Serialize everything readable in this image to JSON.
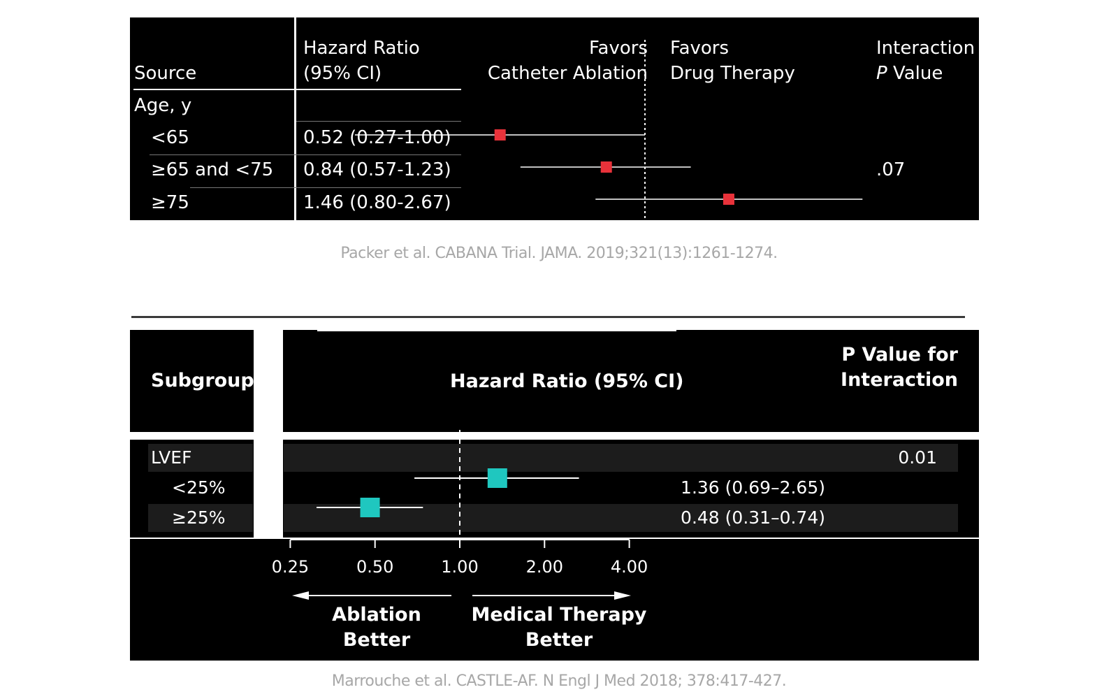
{
  "top_table": {
    "headers": {
      "source": "Source",
      "hr_line1": "Hazard Ratio",
      "hr_line2": "(95% CI)",
      "favors_left_1": "Favors",
      "favors_left_2": "Catheter Ablation",
      "favors_right_1": "Favors",
      "favors_right_2": "Drug Therapy",
      "pvalue_1": "Interaction",
      "pvalue_2_italic": "P",
      "pvalue_2_rest": " Value"
    },
    "group_label": "Age, y",
    "rows": [
      {
        "label": "<65",
        "hr_text": "0.52 (0.27-1.00)"
      },
      {
        "label": "≥65 and <75",
        "hr_text": "0.84 (0.57-1.23)"
      },
      {
        "label": "≥75",
        "hr_text": "1.46 (0.80-2.67)"
      }
    ],
    "p_value": ".07",
    "marker_color": "#e8323a"
  },
  "top_caption": "Packer et al. CABANA Trial. JAMA. 2019;321(13):1261-1274.",
  "bottom_table": {
    "headers": {
      "subgroup": "Subgroup",
      "hr": "Hazard Ratio (95% CI)",
      "pvalue_1": "P Value for",
      "pvalue_2": "Interaction"
    },
    "group_label": "LVEF",
    "p_value": "0.01",
    "rows": [
      {
        "label": "<25%",
        "hr_text": "1.36 (0.69–2.65)"
      },
      {
        "label": "≥25%",
        "hr_text": "0.48 (0.31–0.74)"
      }
    ],
    "axis_ticks": [
      "0.25",
      "0.50",
      "1.00",
      "2.00",
      "4.00"
    ],
    "left_arrow_1": "Ablation",
    "left_arrow_2": "Better",
    "right_arrow_1": "Medical Therapy",
    "right_arrow_2": "Better",
    "marker_color": "#1fc7bf"
  },
  "bottom_caption": "Marrouche et al. CASTLE-AF. N Engl J Med 2018; 378:417-427.",
  "chart_data": [
    {
      "type": "forest",
      "scale": "log",
      "reference": 1.0,
      "categories": [
        "<65",
        "≥65 and <75",
        "≥75"
      ],
      "values": [
        0.52,
        0.84,
        1.46
      ],
      "ci_low": [
        0.27,
        0.57,
        0.8
      ],
      "ci_high": [
        1.0,
        1.23,
        2.67
      ]
    },
    {
      "type": "forest",
      "scale": "log",
      "reference": 1.0,
      "categories": [
        "<25%",
        "≥25%"
      ],
      "values": [
        1.36,
        0.48
      ],
      "ci_low": [
        0.69,
        0.31
      ],
      "ci_high": [
        2.65,
        0.74
      ],
      "xticks": [
        0.25,
        0.5,
        1.0,
        2.0,
        4.0
      ]
    }
  ]
}
